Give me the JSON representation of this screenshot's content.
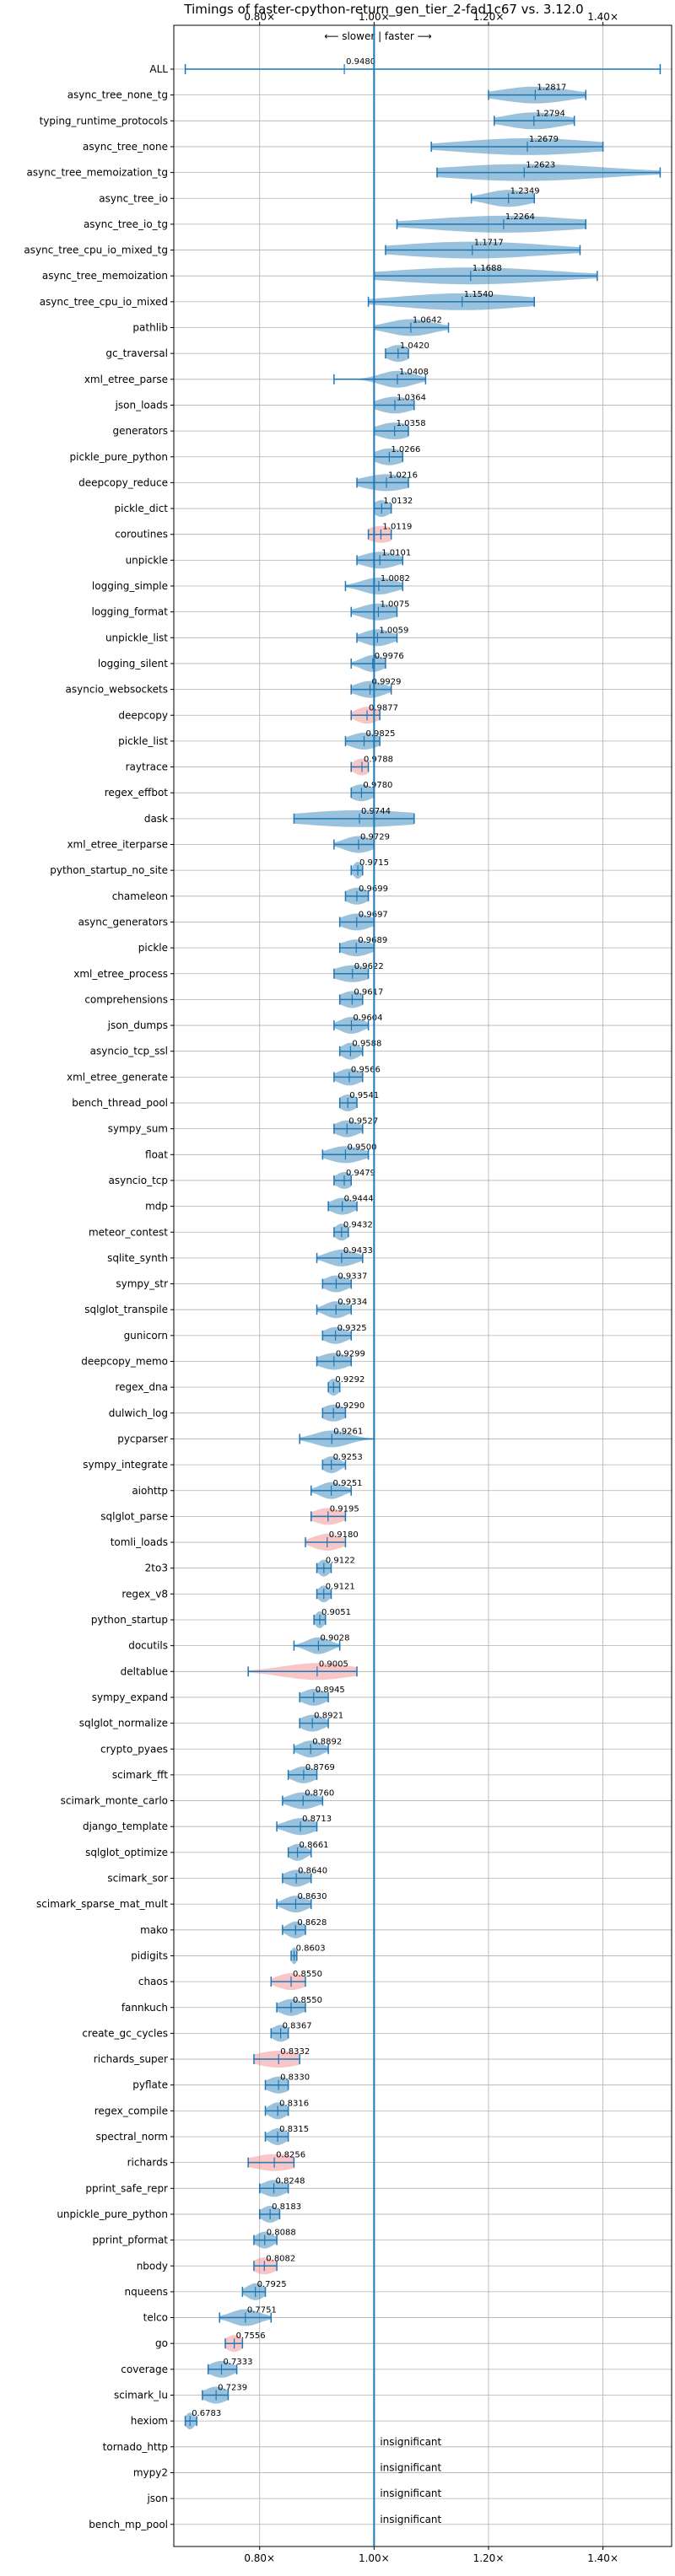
{
  "chart_data": {
    "type": "violin",
    "title": "Timings of faster-cpython-return_gen_tier_2-fad1c67 vs. 3.12.0",
    "direction_label": "⟵ slower | faster ⟶",
    "xlim": [
      0.65,
      1.52
    ],
    "ticks": [
      0.8,
      1.0,
      1.2,
      1.4
    ],
    "tick_labels": [
      "0.80×",
      "1.00×",
      "1.20×",
      "1.40×"
    ],
    "reference_line": 1.0,
    "colors": {
      "faster": "#1f77b4",
      "slower": "#f08080",
      "line": "#1f77b4",
      "grid": "#b0b0b0"
    },
    "insignificant_label": "insignificant",
    "benchmarks": [
      {
        "name": "ALL",
        "value": 0.948,
        "label": "0.9480",
        "min": 0.67,
        "max": 1.5,
        "spread": 0.0,
        "status": "all"
      },
      {
        "name": "async_tree_none_tg",
        "value": 1.2817,
        "label": "1.2817",
        "min": 1.2,
        "max": 1.37,
        "spread": 0.06,
        "status": "faster"
      },
      {
        "name": "typing_runtime_protocols",
        "value": 1.2794,
        "label": "1.2794",
        "min": 1.21,
        "max": 1.35,
        "spread": 0.05,
        "status": "faster"
      },
      {
        "name": "async_tree_none",
        "value": 1.2679,
        "label": "1.2679",
        "min": 1.1,
        "max": 1.4,
        "spread": 0.12,
        "status": "faster"
      },
      {
        "name": "async_tree_memoization_tg",
        "value": 1.2623,
        "label": "1.2623",
        "min": 1.11,
        "max": 1.5,
        "spread": 0.14,
        "status": "faster"
      },
      {
        "name": "async_tree_io",
        "value": 1.2349,
        "label": "1.2349",
        "min": 1.17,
        "max": 1.28,
        "spread": 0.04,
        "status": "faster"
      },
      {
        "name": "async_tree_io_tg",
        "value": 1.2264,
        "label": "1.2264",
        "min": 1.04,
        "max": 1.37,
        "spread": 0.13,
        "status": "faster"
      },
      {
        "name": "async_tree_cpu_io_mixed_tg",
        "value": 1.1717,
        "label": "1.1717",
        "min": 1.02,
        "max": 1.36,
        "spread": 0.13,
        "status": "faster"
      },
      {
        "name": "async_tree_memoization",
        "value": 1.1688,
        "label": "1.1688",
        "min": 1.0,
        "max": 1.39,
        "spread": 0.14,
        "status": "faster"
      },
      {
        "name": "async_tree_cpu_io_mixed",
        "value": 1.154,
        "label": "1.1540",
        "min": 0.99,
        "max": 1.28,
        "spread": 0.11,
        "status": "faster"
      },
      {
        "name": "pathlib",
        "value": 1.0642,
        "label": "1.0642",
        "min": 1.0,
        "max": 1.13,
        "spread": 0.04,
        "status": "faster"
      },
      {
        "name": "gc_traversal",
        "value": 1.042,
        "label": "1.0420",
        "min": 1.02,
        "max": 1.06,
        "spread": 0.02,
        "status": "faster"
      },
      {
        "name": "xml_etree_parse",
        "value": 1.0408,
        "label": "1.0408",
        "min": 0.93,
        "max": 1.09,
        "spread": 0.03,
        "status": "faster"
      },
      {
        "name": "json_loads",
        "value": 1.0364,
        "label": "1.0364",
        "min": 1.0,
        "max": 1.07,
        "spread": 0.03,
        "status": "faster"
      },
      {
        "name": "generators",
        "value": 1.0358,
        "label": "1.0358",
        "min": 1.0,
        "max": 1.06,
        "spread": 0.03,
        "status": "faster"
      },
      {
        "name": "pickle_pure_python",
        "value": 1.0266,
        "label": "1.0266",
        "min": 1.0,
        "max": 1.05,
        "spread": 0.025,
        "status": "faster"
      },
      {
        "name": "deepcopy_reduce",
        "value": 1.0216,
        "label": "1.0216",
        "min": 0.97,
        "max": 1.06,
        "spread": 0.04,
        "status": "faster"
      },
      {
        "name": "pickle_dict",
        "value": 1.0132,
        "label": "1.0132",
        "min": 1.0,
        "max": 1.03,
        "spread": 0.015,
        "status": "faster"
      },
      {
        "name": "coroutines",
        "value": 1.0119,
        "label": "1.0119",
        "min": 0.99,
        "max": 1.03,
        "spread": 0.025,
        "status": "slower"
      },
      {
        "name": "unpickle",
        "value": 1.0101,
        "label": "1.0101",
        "min": 0.97,
        "max": 1.05,
        "spread": 0.03,
        "status": "faster"
      },
      {
        "name": "logging_simple",
        "value": 1.0082,
        "label": "1.0082",
        "min": 0.95,
        "max": 1.05,
        "spread": 0.03,
        "status": "faster"
      },
      {
        "name": "logging_format",
        "value": 1.0075,
        "label": "1.0075",
        "min": 0.96,
        "max": 1.04,
        "spread": 0.03,
        "status": "faster"
      },
      {
        "name": "unpickle_list",
        "value": 1.0059,
        "label": "1.0059",
        "min": 0.97,
        "max": 1.04,
        "spread": 0.025,
        "status": "faster"
      },
      {
        "name": "logging_silent",
        "value": 0.9976,
        "label": "0.9976",
        "min": 0.96,
        "max": 1.02,
        "spread": 0.02,
        "status": "faster"
      },
      {
        "name": "asyncio_websockets",
        "value": 0.9929,
        "label": "0.9929",
        "min": 0.96,
        "max": 1.03,
        "spread": 0.025,
        "status": "faster"
      },
      {
        "name": "deepcopy",
        "value": 0.9877,
        "label": "0.9877",
        "min": 0.96,
        "max": 1.01,
        "spread": 0.02,
        "status": "slower"
      },
      {
        "name": "pickle_list",
        "value": 0.9825,
        "label": "0.9825",
        "min": 0.95,
        "max": 1.01,
        "spread": 0.025,
        "status": "faster"
      },
      {
        "name": "raytrace",
        "value": 0.9788,
        "label": "0.9788",
        "min": 0.96,
        "max": 0.99,
        "spread": 0.015,
        "status": "slower"
      },
      {
        "name": "regex_effbot",
        "value": 0.978,
        "label": "0.9780",
        "min": 0.96,
        "max": 1.0,
        "spread": 0.02,
        "status": "faster"
      },
      {
        "name": "dask",
        "value": 0.9744,
        "label": "0.9744",
        "min": 0.86,
        "max": 1.07,
        "spread": 0.11,
        "status": "faster"
      },
      {
        "name": "xml_etree_iterparse",
        "value": 0.9729,
        "label": "0.9729",
        "min": 0.93,
        "max": 1.0,
        "spread": 0.025,
        "status": "faster"
      },
      {
        "name": "python_startup_no_site",
        "value": 0.9715,
        "label": "0.9715",
        "min": 0.96,
        "max": 0.98,
        "spread": 0.008,
        "status": "faster"
      },
      {
        "name": "chameleon",
        "value": 0.9699,
        "label": "0.9699",
        "min": 0.95,
        "max": 0.99,
        "spread": 0.02,
        "status": "faster"
      },
      {
        "name": "async_generators",
        "value": 0.9697,
        "label": "0.9697",
        "min": 0.94,
        "max": 1.0,
        "spread": 0.025,
        "status": "faster"
      },
      {
        "name": "pickle",
        "value": 0.9689,
        "label": "0.9689",
        "min": 0.94,
        "max": 1.0,
        "spread": 0.025,
        "status": "faster"
      },
      {
        "name": "xml_etree_process",
        "value": 0.9622,
        "label": "0.9622",
        "min": 0.93,
        "max": 0.99,
        "spread": 0.03,
        "status": "faster"
      },
      {
        "name": "comprehensions",
        "value": 0.9617,
        "label": "0.9617",
        "min": 0.94,
        "max": 0.98,
        "spread": 0.02,
        "status": "faster"
      },
      {
        "name": "json_dumps",
        "value": 0.9604,
        "label": "0.9604",
        "min": 0.93,
        "max": 0.99,
        "spread": 0.02,
        "status": "faster"
      },
      {
        "name": "asyncio_tcp_ssl",
        "value": 0.9588,
        "label": "0.9588",
        "min": 0.94,
        "max": 0.98,
        "spread": 0.015,
        "status": "faster"
      },
      {
        "name": "xml_etree_generate",
        "value": 0.9566,
        "label": "0.9566",
        "min": 0.93,
        "max": 0.98,
        "spread": 0.02,
        "status": "faster"
      },
      {
        "name": "bench_thread_pool",
        "value": 0.9541,
        "label": "0.9541",
        "min": 0.94,
        "max": 0.97,
        "spread": 0.015,
        "status": "faster"
      },
      {
        "name": "sympy_sum",
        "value": 0.9527,
        "label": "0.9527",
        "min": 0.93,
        "max": 0.98,
        "spread": 0.02,
        "status": "faster"
      },
      {
        "name": "float",
        "value": 0.95,
        "label": "0.9500",
        "min": 0.91,
        "max": 0.99,
        "spread": 0.03,
        "status": "faster"
      },
      {
        "name": "asyncio_tcp",
        "value": 0.9479,
        "label": "0.9479",
        "min": 0.93,
        "max": 0.96,
        "spread": 0.015,
        "status": "faster"
      },
      {
        "name": "mdp",
        "value": 0.9444,
        "label": "0.9444",
        "min": 0.92,
        "max": 0.97,
        "spread": 0.02,
        "status": "faster"
      },
      {
        "name": "meteor_contest",
        "value": 0.9432,
        "label": "0.9432",
        "min": 0.93,
        "max": 0.955,
        "spread": 0.012,
        "status": "faster"
      },
      {
        "name": "sqlite_synth",
        "value": 0.9433,
        "label": "0.9433",
        "min": 0.9,
        "max": 0.98,
        "spread": 0.025,
        "status": "faster"
      },
      {
        "name": "sympy_str",
        "value": 0.9337,
        "label": "0.9337",
        "min": 0.91,
        "max": 0.96,
        "spread": 0.02,
        "status": "faster"
      },
      {
        "name": "sqlglot_transpile",
        "value": 0.9334,
        "label": "0.9334",
        "min": 0.9,
        "max": 0.96,
        "spread": 0.02,
        "status": "faster"
      },
      {
        "name": "gunicorn",
        "value": 0.9325,
        "label": "0.9325",
        "min": 0.91,
        "max": 0.96,
        "spread": 0.02,
        "status": "faster"
      },
      {
        "name": "deepcopy_memo",
        "value": 0.9299,
        "label": "0.9299",
        "min": 0.9,
        "max": 0.96,
        "spread": 0.025,
        "status": "faster"
      },
      {
        "name": "regex_dna",
        "value": 0.9292,
        "label": "0.9292",
        "min": 0.92,
        "max": 0.94,
        "spread": 0.01,
        "status": "faster"
      },
      {
        "name": "dulwich_log",
        "value": 0.929,
        "label": "0.9290",
        "min": 0.91,
        "max": 0.95,
        "spread": 0.02,
        "status": "faster"
      },
      {
        "name": "pycparser",
        "value": 0.9261,
        "label": "0.9261",
        "min": 0.87,
        "max": 1.0,
        "spread": 0.03,
        "status": "faster"
      },
      {
        "name": "sympy_integrate",
        "value": 0.9253,
        "label": "0.9253",
        "min": 0.91,
        "max": 0.95,
        "spread": 0.015,
        "status": "faster"
      },
      {
        "name": "aiohttp",
        "value": 0.9251,
        "label": "0.9251",
        "min": 0.89,
        "max": 0.96,
        "spread": 0.02,
        "status": "faster"
      },
      {
        "name": "sqlglot_parse",
        "value": 0.9195,
        "label": "0.9195",
        "min": 0.89,
        "max": 0.95,
        "spread": 0.025,
        "status": "slower"
      },
      {
        "name": "tomli_loads",
        "value": 0.918,
        "label": "0.9180",
        "min": 0.88,
        "max": 0.95,
        "spread": 0.025,
        "status": "slower"
      },
      {
        "name": "2to3",
        "value": 0.9122,
        "label": "0.9122",
        "min": 0.9,
        "max": 0.925,
        "spread": 0.01,
        "status": "faster"
      },
      {
        "name": "regex_v8",
        "value": 0.9121,
        "label": "0.9121",
        "min": 0.9,
        "max": 0.925,
        "spread": 0.01,
        "status": "faster"
      },
      {
        "name": "python_startup",
        "value": 0.9051,
        "label": "0.9051",
        "min": 0.895,
        "max": 0.915,
        "spread": 0.008,
        "status": "faster"
      },
      {
        "name": "docutils",
        "value": 0.9028,
        "label": "0.9028",
        "min": 0.86,
        "max": 0.94,
        "spread": 0.02,
        "status": "faster"
      },
      {
        "name": "deltablue",
        "value": 0.9005,
        "label": "0.9005",
        "min": 0.78,
        "max": 0.97,
        "spread": 0.06,
        "status": "slower"
      },
      {
        "name": "sympy_expand",
        "value": 0.8945,
        "label": "0.8945",
        "min": 0.87,
        "max": 0.92,
        "spread": 0.02,
        "status": "faster"
      },
      {
        "name": "sqlglot_normalize",
        "value": 0.8921,
        "label": "0.8921",
        "min": 0.87,
        "max": 0.92,
        "spread": 0.02,
        "status": "faster"
      },
      {
        "name": "crypto_pyaes",
        "value": 0.8892,
        "label": "0.8892",
        "min": 0.86,
        "max": 0.92,
        "spread": 0.02,
        "status": "faster"
      },
      {
        "name": "scimark_fft",
        "value": 0.8769,
        "label": "0.8769",
        "min": 0.85,
        "max": 0.9,
        "spread": 0.02,
        "status": "faster"
      },
      {
        "name": "scimark_monte_carlo",
        "value": 0.876,
        "label": "0.8760",
        "min": 0.84,
        "max": 0.91,
        "spread": 0.025,
        "status": "faster"
      },
      {
        "name": "django_template",
        "value": 0.8713,
        "label": "0.8713",
        "min": 0.83,
        "max": 0.9,
        "spread": 0.025,
        "status": "faster"
      },
      {
        "name": "sqlglot_optimize",
        "value": 0.8661,
        "label": "0.8661",
        "min": 0.85,
        "max": 0.89,
        "spread": 0.015,
        "status": "faster"
      },
      {
        "name": "scimark_sor",
        "value": 0.864,
        "label": "0.8640",
        "min": 0.84,
        "max": 0.89,
        "spread": 0.02,
        "status": "faster"
      },
      {
        "name": "scimark_sparse_mat_mult",
        "value": 0.863,
        "label": "0.8630",
        "min": 0.83,
        "max": 0.89,
        "spread": 0.02,
        "status": "faster"
      },
      {
        "name": "mako",
        "value": 0.8628,
        "label": "0.8628",
        "min": 0.84,
        "max": 0.88,
        "spread": 0.015,
        "status": "faster"
      },
      {
        "name": "pidigits",
        "value": 0.8603,
        "label": "0.8603",
        "min": 0.855,
        "max": 0.865,
        "spread": 0.005,
        "status": "faster"
      },
      {
        "name": "chaos",
        "value": 0.855,
        "label": "0.8550",
        "min": 0.82,
        "max": 0.88,
        "spread": 0.025,
        "status": "slower"
      },
      {
        "name": "fannkuch",
        "value": 0.855,
        "label": "0.8550",
        "min": 0.83,
        "max": 0.88,
        "spread": 0.02,
        "status": "faster"
      },
      {
        "name": "create_gc_cycles",
        "value": 0.8367,
        "label": "0.8367",
        "min": 0.82,
        "max": 0.85,
        "spread": 0.015,
        "status": "faster"
      },
      {
        "name": "richards_super",
        "value": 0.8332,
        "label": "0.8332",
        "min": 0.79,
        "max": 0.87,
        "spread": 0.04,
        "status": "slower"
      },
      {
        "name": "pyflate",
        "value": 0.833,
        "label": "0.8330",
        "min": 0.81,
        "max": 0.85,
        "spread": 0.02,
        "status": "faster"
      },
      {
        "name": "regex_compile",
        "value": 0.8316,
        "label": "0.8316",
        "min": 0.81,
        "max": 0.85,
        "spread": 0.015,
        "status": "faster"
      },
      {
        "name": "spectral_norm",
        "value": 0.8315,
        "label": "0.8315",
        "min": 0.81,
        "max": 0.85,
        "spread": 0.015,
        "status": "faster"
      },
      {
        "name": "richards",
        "value": 0.8256,
        "label": "0.8256",
        "min": 0.78,
        "max": 0.86,
        "spread": 0.04,
        "status": "slower"
      },
      {
        "name": "pprint_safe_repr",
        "value": 0.8248,
        "label": "0.8248",
        "min": 0.8,
        "max": 0.85,
        "spread": 0.02,
        "status": "faster"
      },
      {
        "name": "unpickle_pure_python",
        "value": 0.8183,
        "label": "0.8183",
        "min": 0.8,
        "max": 0.835,
        "spread": 0.015,
        "status": "faster"
      },
      {
        "name": "pprint_pformat",
        "value": 0.8088,
        "label": "0.8088",
        "min": 0.79,
        "max": 0.83,
        "spread": 0.015,
        "status": "faster"
      },
      {
        "name": "nbody",
        "value": 0.8082,
        "label": "0.8082",
        "min": 0.79,
        "max": 0.83,
        "spread": 0.02,
        "status": "slower"
      },
      {
        "name": "nqueens",
        "value": 0.7925,
        "label": "0.7925",
        "min": 0.77,
        "max": 0.81,
        "spread": 0.015,
        "status": "faster"
      },
      {
        "name": "telco",
        "value": 0.7751,
        "label": "0.7751",
        "min": 0.73,
        "max": 0.82,
        "spread": 0.025,
        "status": "faster"
      },
      {
        "name": "go",
        "value": 0.7556,
        "label": "0.7556",
        "min": 0.74,
        "max": 0.77,
        "spread": 0.015,
        "status": "slower"
      },
      {
        "name": "coverage",
        "value": 0.7333,
        "label": "0.7333",
        "min": 0.71,
        "max": 0.76,
        "spread": 0.02,
        "status": "faster"
      },
      {
        "name": "scimark_lu",
        "value": 0.7239,
        "label": "0.7239",
        "min": 0.7,
        "max": 0.745,
        "spread": 0.02,
        "status": "faster"
      },
      {
        "name": "hexiom",
        "value": 0.6783,
        "label": "0.6783",
        "min": 0.67,
        "max": 0.69,
        "spread": 0.008,
        "status": "faster"
      },
      {
        "name": "tornado_http",
        "value": null,
        "label": "insignificant",
        "status": "insignificant"
      },
      {
        "name": "mypy2",
        "value": null,
        "label": "insignificant",
        "status": "insignificant"
      },
      {
        "name": "json",
        "value": null,
        "label": "insignificant",
        "status": "insignificant"
      },
      {
        "name": "bench_mp_pool",
        "value": null,
        "label": "insignificant",
        "status": "insignificant"
      }
    ]
  }
}
